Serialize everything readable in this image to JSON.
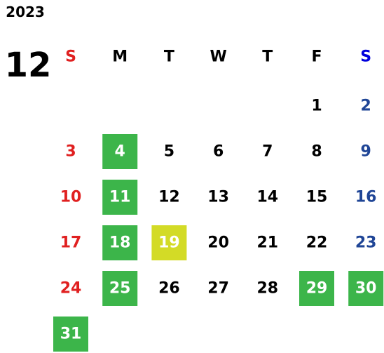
{
  "year": "2023",
  "month": "12",
  "weekdays": [
    "S",
    "M",
    "T",
    "W",
    "T",
    "F",
    "S"
  ],
  "weekday_colors": [
    "#e02020",
    "#000000",
    "#000000",
    "#000000",
    "#000000",
    "#000000",
    "#0000dd"
  ],
  "day_colors": [
    "#e02020",
    "#000000",
    "#000000",
    "#000000",
    "#000000",
    "#000000",
    "#1f4596"
  ],
  "weeks": [
    [
      null,
      null,
      null,
      null,
      null,
      1,
      2
    ],
    [
      3,
      4,
      5,
      6,
      7,
      8,
      9
    ],
    [
      10,
      11,
      12,
      13,
      14,
      15,
      16
    ],
    [
      17,
      18,
      19,
      20,
      21,
      22,
      23
    ],
    [
      24,
      25,
      26,
      27,
      28,
      29,
      30
    ],
    [
      31,
      null,
      null,
      null,
      null,
      null,
      null
    ]
  ],
  "highlights": [
    {
      "day": 4,
      "color": "#3cb54a"
    },
    {
      "day": 11,
      "color": "#3cb54a"
    },
    {
      "day": 18,
      "color": "#3cb54a"
    },
    {
      "day": 19,
      "color": "#d3db26"
    },
    {
      "day": 25,
      "color": "#3cb54a"
    },
    {
      "day": 29,
      "color": "#3cb54a"
    },
    {
      "day": 30,
      "color": "#3cb54a"
    },
    {
      "day": 31,
      "color": "#3cb54a"
    }
  ]
}
